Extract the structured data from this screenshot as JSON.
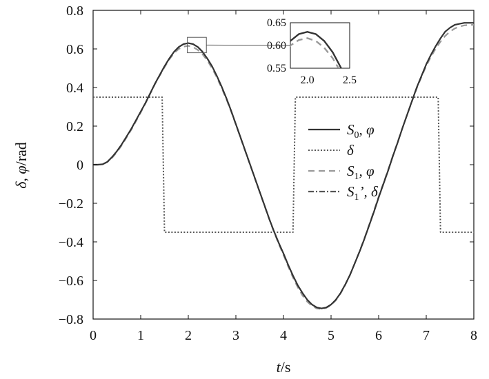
{
  "chart_data": {
    "type": "line",
    "title": "",
    "xlabel_var": "t",
    "xlabel_unit": "/s",
    "ylabel_vars": "δ, φ",
    "ylabel_unit": "/rad",
    "xlim": [
      0,
      8
    ],
    "ylim": [
      -0.8,
      0.8
    ],
    "x_ticks": [
      0,
      1,
      2,
      3,
      4,
      5,
      6,
      7,
      8
    ],
    "x_tick_labels": [
      "0",
      "1",
      "2",
      "3",
      "4",
      "5",
      "6",
      "7",
      "8"
    ],
    "y_ticks": [
      -0.8,
      -0.6,
      -0.4,
      -0.2,
      0,
      0.2,
      0.4,
      0.6,
      0.8
    ],
    "y_tick_labels": [
      "−0.8",
      "−0.6",
      "−0.4",
      "−0.2",
      "0",
      "0.2",
      "0.4",
      "0.6",
      "0.8"
    ],
    "grid": false,
    "legend_position": "right-center",
    "series": [
      {
        "name": "S0, φ",
        "style": "solid",
        "color": "#333333",
        "x": [
          0,
          0.1,
          0.2,
          0.3,
          0.4,
          0.5,
          0.6,
          0.7,
          0.8,
          0.9,
          1.0,
          1.1,
          1.2,
          1.3,
          1.4,
          1.5,
          1.6,
          1.7,
          1.8,
          1.9,
          2.0,
          2.1,
          2.2,
          2.3,
          2.4,
          2.5,
          2.6,
          2.7,
          2.8,
          2.9,
          3.0,
          3.1,
          3.2,
          3.3,
          3.4,
          3.5,
          3.6,
          3.7,
          3.8,
          3.9,
          4.0,
          4.1,
          4.2,
          4.3,
          4.4,
          4.5,
          4.6,
          4.7,
          4.8,
          4.9,
          5.0,
          5.1,
          5.2,
          5.3,
          5.4,
          5.5,
          5.6,
          5.7,
          5.8,
          5.9,
          6.0,
          6.1,
          6.2,
          6.3,
          6.4,
          6.5,
          6.6,
          6.7,
          6.8,
          6.9,
          7.0,
          7.1,
          7.2,
          7.3,
          7.4,
          7.5,
          7.6,
          7.7,
          7.8,
          7.9,
          8.0
        ],
        "y": [
          0.0,
          0.0,
          0.002,
          0.015,
          0.04,
          0.07,
          0.105,
          0.145,
          0.185,
          0.23,
          0.275,
          0.32,
          0.37,
          0.42,
          0.465,
          0.51,
          0.55,
          0.585,
          0.61,
          0.625,
          0.63,
          0.625,
          0.61,
          0.585,
          0.55,
          0.51,
          0.46,
          0.405,
          0.345,
          0.28,
          0.21,
          0.14,
          0.07,
          0.0,
          -0.07,
          -0.14,
          -0.21,
          -0.28,
          -0.345,
          -0.405,
          -0.46,
          -0.52,
          -0.575,
          -0.625,
          -0.665,
          -0.7,
          -0.725,
          -0.74,
          -0.745,
          -0.74,
          -0.725,
          -0.7,
          -0.665,
          -0.62,
          -0.57,
          -0.51,
          -0.45,
          -0.385,
          -0.315,
          -0.245,
          -0.17,
          -0.1,
          -0.03,
          0.045,
          0.115,
          0.19,
          0.26,
          0.33,
          0.4,
          0.46,
          0.52,
          0.57,
          0.615,
          0.655,
          0.69,
          0.71,
          0.725,
          0.73,
          0.735,
          0.735,
          0.735
        ]
      },
      {
        "name": "δ",
        "style": "dotted",
        "color": "#555555",
        "x": [
          0,
          1.45,
          1.5,
          4.2,
          4.25,
          7.25,
          7.3,
          8.0
        ],
        "y": [
          0.35,
          0.35,
          -0.35,
          -0.35,
          0.35,
          0.35,
          -0.35,
          -0.35
        ]
      },
      {
        "name": "S1, φ",
        "style": "dashed",
        "color": "#999999",
        "x": [
          0,
          0.1,
          0.2,
          0.3,
          0.4,
          0.5,
          0.6,
          0.7,
          0.8,
          0.9,
          1.0,
          1.1,
          1.2,
          1.3,
          1.4,
          1.5,
          1.6,
          1.7,
          1.8,
          1.9,
          2.0,
          2.1,
          2.2,
          2.3,
          2.4,
          2.5,
          2.6,
          2.7,
          2.8,
          2.9,
          3.0,
          3.1,
          3.2,
          3.3,
          3.4,
          3.5,
          3.6,
          3.7,
          3.8,
          3.9,
          4.0,
          4.1,
          4.2,
          4.3,
          4.4,
          4.5,
          4.6,
          4.7,
          4.8,
          4.9,
          5.0,
          5.1,
          5.2,
          5.3,
          5.4,
          5.5,
          5.6,
          5.7,
          5.8,
          5.9,
          6.0,
          6.1,
          6.2,
          6.3,
          6.4,
          6.5,
          6.6,
          6.7,
          6.8,
          6.9,
          7.0,
          7.1,
          7.2,
          7.3,
          7.4,
          7.5,
          7.6,
          7.7,
          7.8,
          7.9,
          8.0
        ],
        "y": [
          0.0,
          0.0,
          0.002,
          0.014,
          0.036,
          0.065,
          0.1,
          0.14,
          0.18,
          0.225,
          0.27,
          0.318,
          0.368,
          0.418,
          0.462,
          0.505,
          0.545,
          0.578,
          0.6,
          0.612,
          0.616,
          0.61,
          0.595,
          0.572,
          0.54,
          0.5,
          0.452,
          0.398,
          0.34,
          0.276,
          0.208,
          0.138,
          0.068,
          -0.002,
          -0.072,
          -0.142,
          -0.212,
          -0.282,
          -0.348,
          -0.41,
          -0.468,
          -0.528,
          -0.585,
          -0.635,
          -0.678,
          -0.71,
          -0.732,
          -0.745,
          -0.748,
          -0.742,
          -0.728,
          -0.703,
          -0.667,
          -0.622,
          -0.57,
          -0.51,
          -0.448,
          -0.382,
          -0.312,
          -0.24,
          -0.166,
          -0.096,
          -0.026,
          0.048,
          0.118,
          0.19,
          0.26,
          0.328,
          0.395,
          0.455,
          0.512,
          0.56,
          0.602,
          0.638,
          0.668,
          0.69,
          0.706,
          0.716,
          0.722,
          0.724,
          0.725
        ]
      },
      {
        "name": "S1', δ",
        "style": "dashdot",
        "color": "#555555",
        "x": [],
        "y": []
      }
    ],
    "legend": [
      {
        "main": "S",
        "sub": "0",
        "tail": ", φ",
        "style": "solid"
      },
      {
        "main": "δ",
        "sub": "",
        "tail": "",
        "style": "dotted"
      },
      {
        "main": "S",
        "sub": "1",
        "tail": ", φ",
        "style": "dashed"
      },
      {
        "main": "S",
        "sub": "1",
        "tail": "’, δ",
        "style": "dashdot"
      }
    ],
    "inset": {
      "xlim": [
        1.8,
        2.5
      ],
      "ylim": [
        0.55,
        0.65
      ],
      "x_tick_labels": [
        "2.0",
        "2.5"
      ],
      "x_ticks": [
        2.0,
        2.5
      ],
      "y_tick_labels": [
        "0.65",
        "0.60",
        "0.55"
      ],
      "y_ticks": [
        0.65,
        0.6,
        0.55
      ],
      "zoom_box": {
        "x0": 1.98,
        "x1": 2.38,
        "y0": 0.58,
        "y1": 0.66
      }
    }
  }
}
